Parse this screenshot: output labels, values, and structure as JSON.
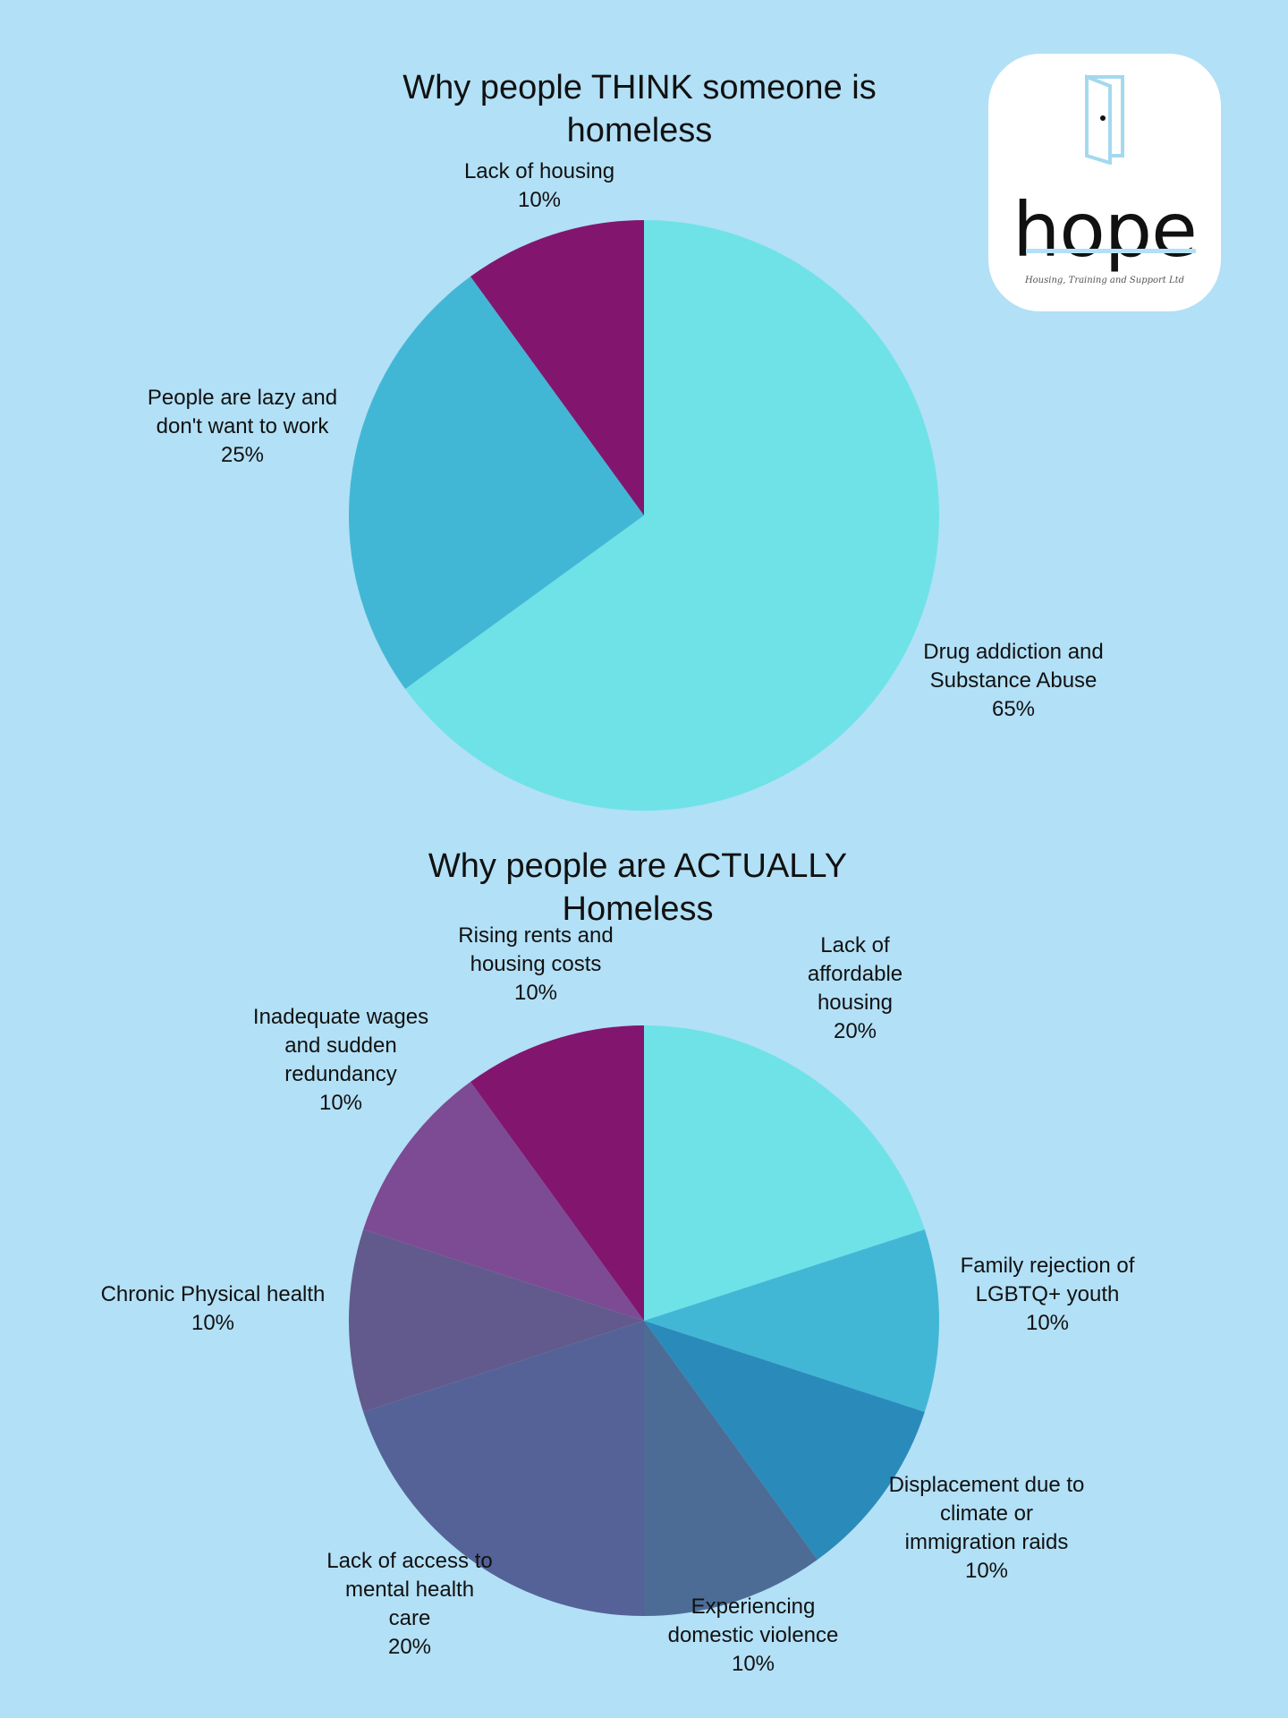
{
  "logo": {
    "word": "hope",
    "tagline": "Housing, Training and Support Ltd",
    "icon": "door-icon"
  },
  "chart_data": [
    {
      "type": "pie",
      "title": "Why people THINK someone is homeless",
      "slices": [
        {
          "label": [
            "Drug addiction and",
            "Substance Abuse"
          ],
          "percent_label": "65%",
          "value": 65,
          "color": "#6fe2e8"
        },
        {
          "label": [
            "People are lazy and",
            "don't want to work"
          ],
          "percent_label": "25%",
          "value": 25,
          "color": "#42b7d5"
        },
        {
          "label": [
            "Lack of housing"
          ],
          "percent_label": "10%",
          "value": 10,
          "color": "#82166e"
        }
      ]
    },
    {
      "type": "pie",
      "title": "Why people are ACTUALLY Homeless",
      "slices": [
        {
          "label": [
            "Lack of",
            "affordable",
            "housing"
          ],
          "percent_label": "20%",
          "value": 20,
          "color": "#6fe2e8"
        },
        {
          "label": [
            "Family rejection of",
            "LGBTQ+ youth"
          ],
          "percent_label": "10%",
          "value": 10,
          "color": "#42b7d5"
        },
        {
          "label": [
            "Displacement due to",
            "climate or",
            "immigration raids"
          ],
          "percent_label": "10%",
          "value": 10,
          "color": "#2a8bbb"
        },
        {
          "label": [
            "Experiencing",
            "domestic violence"
          ],
          "percent_label": "10%",
          "value": 10,
          "color": "#4c6c96"
        },
        {
          "label": [
            "Lack of access to",
            "mental health",
            "care"
          ],
          "percent_label": "20%",
          "value": 20,
          "color": "#556297"
        },
        {
          "label": [
            "Chronic Physical health"
          ],
          "percent_label": "10%",
          "value": 10,
          "color": "#625a8c"
        },
        {
          "label": [
            "Inadequate wages",
            "and sudden",
            "redundancy"
          ],
          "percent_label": "10%",
          "value": 10,
          "color": "#7c4b94"
        },
        {
          "label": [
            "Rising rents and",
            "housing costs"
          ],
          "percent_label": "10%",
          "value": 10,
          "color": "#82166e"
        }
      ]
    }
  ]
}
